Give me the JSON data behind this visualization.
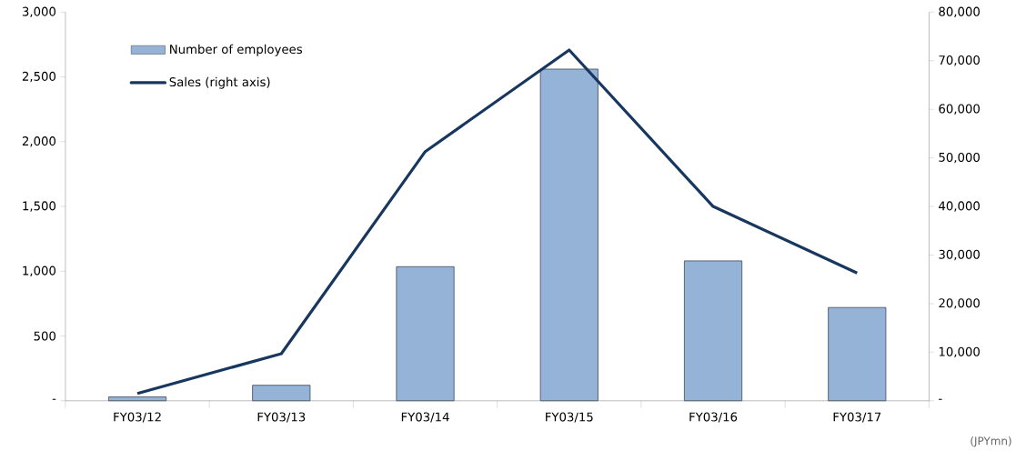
{
  "chart_data": {
    "type": "bar",
    "categories": [
      "FY03/12",
      "FY03/13",
      "FY03/14",
      "FY03/15",
      "FY03/16",
      "FY03/17"
    ],
    "series": [
      {
        "name": "Number of employees",
        "color": "#95b3d7",
        "values": [
          30,
          120,
          1035,
          2560,
          1080,
          720
        ]
      },
      {
        "name": "Sales (right axis)",
        "type": "line",
        "axis": "y2",
        "color": "#17375e",
        "values": [
          1500,
          9700,
          51300,
          72200,
          40000,
          26300
        ]
      }
    ],
    "ylim": [
      0,
      3000
    ],
    "yticks": [
      {
        "value": 0,
        "label": "-"
      },
      {
        "value": 500,
        "label": "500"
      },
      {
        "value": 1000,
        "label": "1,000"
      },
      {
        "value": 1500,
        "label": "1,500"
      },
      {
        "value": 2000,
        "label": "2,000"
      },
      {
        "value": 2500,
        "label": "2,500"
      },
      {
        "value": 3000,
        "label": "3,000"
      }
    ],
    "y2lim": [
      0,
      80000
    ],
    "y2ticks": [
      {
        "value": 0,
        "label": "-"
      },
      {
        "value": 10000,
        "label": "10,000"
      },
      {
        "value": 20000,
        "label": "20,000"
      },
      {
        "value": 30000,
        "label": "30,000"
      },
      {
        "value": 40000,
        "label": "40,000"
      },
      {
        "value": 50000,
        "label": "50,000"
      },
      {
        "value": 60000,
        "label": "60,000"
      },
      {
        "value": 70000,
        "label": "70,000"
      },
      {
        "value": 80000,
        "label": "80,000"
      }
    ],
    "legend": "top left",
    "annotations": [
      "(JPYmn)"
    ]
  }
}
